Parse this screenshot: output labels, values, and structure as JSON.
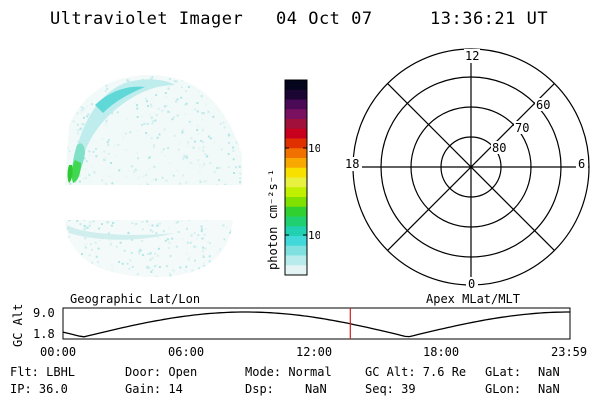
{
  "header": {
    "title": "Ultraviolet Imager",
    "date": "04 Oct 07",
    "time": "13:36:21 UT"
  },
  "colorbar": {
    "label": "photon cm⁻²s⁻¹",
    "ticks": [
      "100",
      "10"
    ],
    "colors": [
      "#05051e",
      "#1a0533",
      "#4a0a55",
      "#7a1060",
      "#a0103a",
      "#c8001e",
      "#e03000",
      "#f07000",
      "#f8a800",
      "#f8e000",
      "#e8f040",
      "#c0f000",
      "#80e000",
      "#30d030",
      "#20d070",
      "#20d0b0",
      "#40d8d8",
      "#80e0e0",
      "#b8ecec",
      "#e4f4f4"
    ]
  },
  "polar": {
    "mlt_labels": {
      "top": "12",
      "left": "18",
      "right": "6",
      "bottom": "0"
    },
    "lat_labels": [
      "60",
      "70",
      "80"
    ]
  },
  "plot": {
    "left_label": "Geographic Lat/Lon",
    "right_label": "Apex MLat/MLT",
    "ylabel": "GC Alt",
    "yticks": [
      "9.0",
      "1.8"
    ],
    "xticks": [
      "00:00",
      "06:00",
      "12:00",
      "18:00",
      "23:59"
    ],
    "current_time_hours": 13.6,
    "marker_color": "#d02020"
  },
  "info": {
    "flt": "Flt: LBHL",
    "ip": "IP: 36.0",
    "door": "Door: Open",
    "gain": "Gain: 14",
    "mode": "Mode: Normal",
    "dsp_label": "Dsp:",
    "dsp_value": "NaN",
    "gcalt": "GC Alt: 7.6 Re",
    "seq": "Seq: 39",
    "glat_label": "GLat:",
    "glat_value": "NaN",
    "glon_label": "GLon:",
    "glon_value": "NaN"
  }
}
